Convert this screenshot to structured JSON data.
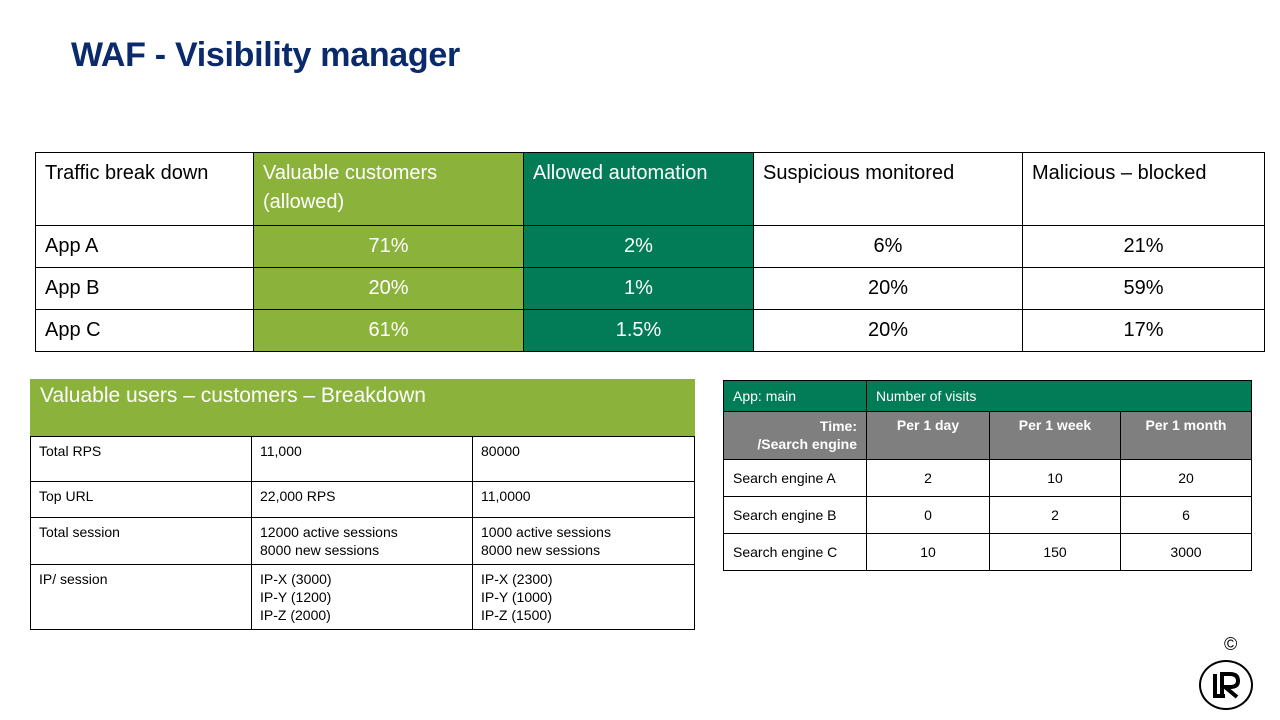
{
  "title": "WAF - Visibility manager",
  "traffic": {
    "headers": [
      "Traffic break down",
      "Valuable customers (allowed)",
      "Allowed automation",
      "Suspicious monitored",
      "Malicious – blocked"
    ],
    "rows": [
      {
        "app": "App A",
        "valuable": "71%",
        "automation": "2%",
        "suspicious": "6%",
        "malicious": "21%"
      },
      {
        "app": "App B",
        "valuable": "20%",
        "automation": "1%",
        "suspicious": "20%",
        "malicious": "59%"
      },
      {
        "app": "App C",
        "valuable": "61%",
        "automation": "1.5%",
        "suspicious": "20%",
        "malicious": "17%"
      }
    ]
  },
  "breakdown": {
    "title": "Valuable users – customers – Breakdown",
    "rows": [
      {
        "label": "Total RPS",
        "col1": [
          "11,000"
        ],
        "col2": [
          "80000"
        ]
      },
      {
        "label": "Top URL",
        "col1": [
          "22,000 RPS"
        ],
        "col2": [
          "11,0000"
        ]
      },
      {
        "label": "Total session",
        "col1": [
          "12000 active sessions",
          "8000 new sessions"
        ],
        "col2": [
          "1000 active sessions",
          "8000 new sessions"
        ]
      },
      {
        "label": "IP/ session",
        "col1": [
          "IP-X (3000)",
          "IP-Y (1200)",
          "IP-Z (2000)"
        ],
        "col2": [
          "IP-X (2300)",
          "IP-Y (1000)",
          "IP-Z (1500)"
        ]
      }
    ]
  },
  "visits": {
    "app_label": "App: main",
    "visits_label": "Number of visits",
    "corner_line1": "Time:",
    "corner_line2": "/Search engine",
    "periods": [
      "Per 1 day",
      "Per 1 week",
      "Per 1 month"
    ],
    "rows": [
      {
        "engine": "Search engine A",
        "values": [
          "2",
          "10",
          "20"
        ]
      },
      {
        "engine": "Search engine B",
        "values": [
          "0",
          "2",
          "6"
        ]
      },
      {
        "engine": "Search engine C",
        "values": [
          "10",
          "150",
          "3000"
        ]
      }
    ]
  },
  "footer": {
    "copyright": "©",
    "logo_text": "LR",
    "logo_icon": "lr-logo-icon"
  }
}
